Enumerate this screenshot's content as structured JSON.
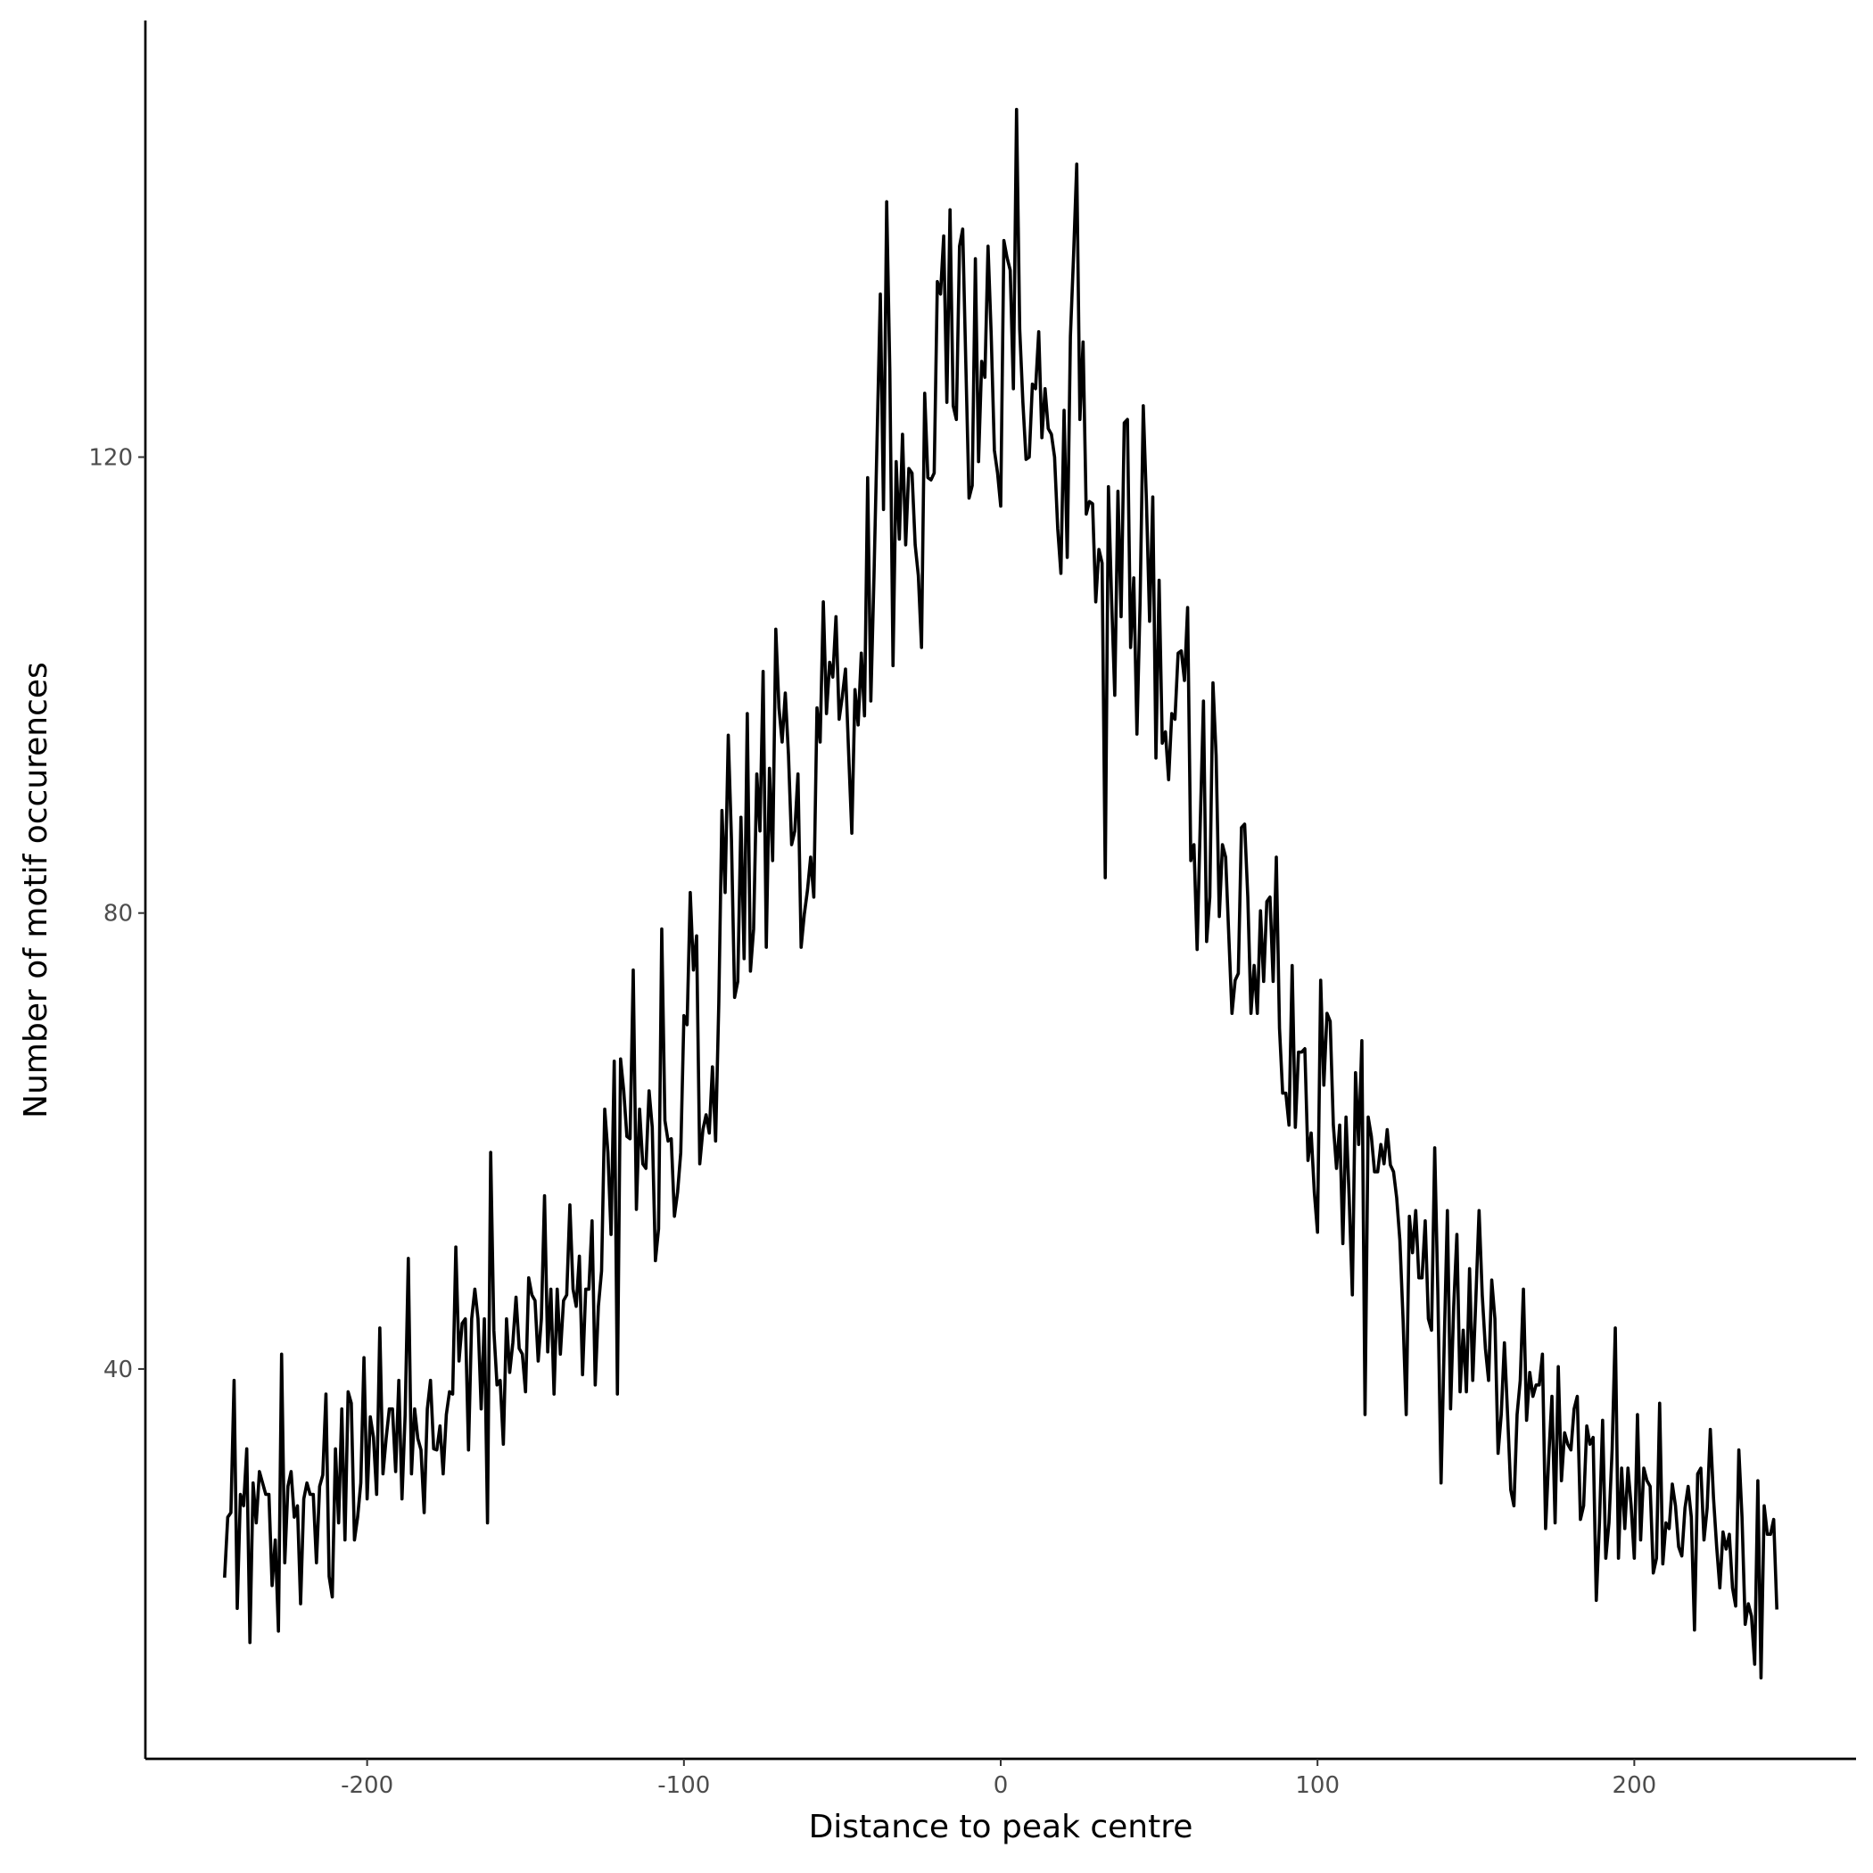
{
  "chart_data": {
    "type": "line",
    "x_label": "Distance to peak centre",
    "y_label": "Number of motif occurences",
    "xlim": [
      -270,
      270
    ],
    "xticks": [
      -200,
      -100,
      0,
      100,
      200
    ],
    "ylim": [
      5.8,
      158.3
    ],
    "yticks": [
      40,
      80,
      120
    ],
    "grid": false,
    "color": "#000000",
    "x": [
      -245,
      -244,
      -243,
      -242,
      -241,
      -240,
      -239,
      -238,
      -237,
      -236,
      -235,
      -234,
      -233,
      -232,
      -231,
      -230,
      -229,
      -228,
      -227,
      -226,
      -225,
      -224,
      -223,
      -222,
      -221,
      -220,
      -219,
      -218,
      -217,
      -216,
      -215,
      -214,
      -213,
      -212,
      -211,
      -210,
      -209,
      -208,
      -207,
      -206,
      -205,
      -204,
      -203,
      -202,
      -201,
      -200,
      -199,
      -198,
      -197,
      -196,
      -195,
      -194,
      -193,
      -192,
      -191,
      -190,
      -189,
      -188,
      -187,
      -186,
      -185,
      -184,
      -183,
      -182,
      -181,
      -180,
      -179,
      -178,
      -177,
      -176,
      -175,
      -174,
      -173,
      -172,
      -171,
      -170,
      -169,
      -168,
      -167,
      -166,
      -165,
      -164,
      -163,
      -162,
      -161,
      -160,
      -159,
      -158,
      -157,
      -156,
      -155,
      -154,
      -153,
      -152,
      -151,
      -150,
      -149,
      -148,
      -147,
      -146,
      -145,
      -144,
      -143,
      -142,
      -141,
      -140,
      -139,
      -138,
      -137,
      -136,
      -135,
      -134,
      -133,
      -132,
      -131,
      -130,
      -129,
      -128,
      -127,
      -126,
      -125,
      -124,
      -123,
      -122,
      -121,
      -120,
      -119,
      -118,
      -117,
      -116,
      -115,
      -114,
      -113,
      -112,
      -111,
      -110,
      -109,
      -108,
      -107,
      -106,
      -105,
      -104,
      -103,
      -102,
      -101,
      -100,
      -99,
      -98,
      -97,
      -96,
      -95,
      -94,
      -93,
      -92,
      -91,
      -90,
      -89,
      -88,
      -87,
      -86,
      -85,
      -84,
      -83,
      -82,
      -81,
      -80,
      -79,
      -78,
      -77,
      -76,
      -75,
      -74,
      -73,
      -72,
      -71,
      -70,
      -69,
      -68,
      -67,
      -66,
      -65,
      -64,
      -63,
      -62,
      -61,
      -60,
      -59,
      -58,
      -57,
      -56,
      -55,
      -54,
      -53,
      -52,
      -51,
      -50,
      -49,
      -48,
      -47,
      -46,
      -45,
      -44,
      -43,
      -42,
      -41,
      -40,
      -39,
      -38,
      -37,
      -36,
      -35,
      -34,
      -33,
      -32,
      -31,
      -30,
      -29,
      -28,
      -27,
      -26,
      -25,
      -24,
      -23,
      -22,
      -21,
      -20,
      -19,
      -18,
      -17,
      -16,
      -15,
      -14,
      -13,
      -12,
      -11,
      -10,
      -9,
      -8,
      -7,
      -6,
      -5,
      -4,
      -3,
      -2,
      -1,
      0,
      1,
      2,
      3,
      4,
      5,
      6,
      7,
      8,
      9,
      10,
      11,
      12,
      13,
      14,
      15,
      16,
      17,
      18,
      19,
      20,
      21,
      22,
      23,
      24,
      25,
      26,
      27,
      28,
      29,
      30,
      31,
      32,
      33,
      34,
      35,
      36,
      37,
      38,
      39,
      40,
      41,
      42,
      43,
      44,
      45,
      46,
      47,
      48,
      49,
      50,
      51,
      52,
      53,
      54,
      55,
      56,
      57,
      58,
      59,
      60,
      61,
      62,
      63,
      64,
      65,
      66,
      67,
      68,
      69,
      70,
      71,
      72,
      73,
      74,
      75,
      76,
      77,
      78,
      79,
      80,
      81,
      82,
      83,
      84,
      85,
      86,
      87,
      88,
      89,
      90,
      91,
      92,
      93,
      94,
      95,
      96,
      97,
      98,
      99,
      100,
      101,
      102,
      103,
      104,
      105,
      106,
      107,
      108,
      109,
      110,
      111,
      112,
      113,
      114,
      115,
      116,
      117,
      118,
      119,
      120,
      121,
      122,
      123,
      124,
      125,
      126,
      127,
      128,
      129,
      130,
      131,
      132,
      133,
      134,
      135,
      136,
      137,
      138,
      139,
      140,
      141,
      142,
      143,
      144,
      145,
      146,
      147,
      148,
      149,
      150,
      151,
      152,
      153,
      154,
      155,
      156,
      157,
      158,
      159,
      160,
      161,
      162,
      163,
      164,
      165,
      166,
      167,
      168,
      169,
      170,
      171,
      172,
      173,
      174,
      175,
      176,
      177,
      178,
      179,
      180,
      181,
      182,
      183,
      184,
      185,
      186,
      187,
      188,
      189,
      190,
      191,
      192,
      193,
      194,
      195,
      196,
      197,
      198,
      199,
      200,
      201,
      202,
      203,
      204,
      205,
      206,
      207,
      208,
      209,
      210,
      211,
      212,
      213,
      214,
      215,
      216,
      217,
      218,
      219,
      220,
      221,
      222,
      223,
      224,
      225,
      226,
      227,
      228,
      229,
      230,
      231,
      232,
      233,
      234,
      235,
      236,
      237,
      238,
      239,
      240,
      241,
      242,
      243,
      244,
      245
    ],
    "values": [
      21.7,
      27,
      27.4,
      39,
      19,
      29,
      28,
      33,
      16,
      30,
      26.5,
      31,
      30,
      29,
      29,
      21,
      25,
      17,
      41.3,
      23,
      29.7,
      31,
      27,
      28,
      19.4,
      28.6,
      30,
      29,
      29,
      23,
      29.7,
      30.7,
      37.8,
      21.8,
      20,
      33,
      26.5,
      36.5,
      25,
      38,
      37,
      25,
      27,
      30,
      41,
      28.6,
      35.8,
      34,
      29,
      43.6,
      30.8,
      33.9,
      36.5,
      36.5,
      31,
      39,
      28.6,
      36,
      49.7,
      30.8,
      36.5,
      33.9,
      32.9,
      27.4,
      36.5,
      39,
      33,
      32.9,
      35,
      30.8,
      36,
      38,
      37.8,
      50.7,
      40.7,
      44,
      44.4,
      32.9,
      44.4,
      47,
      44.4,
      36.5,
      44.4,
      26.5,
      59,
      43.4,
      38.6,
      39,
      33.4,
      44.4,
      39.7,
      42.3,
      46.3,
      41.8,
      41.3,
      38,
      48,
      46.5,
      46,
      40.7,
      44.4,
      55.2,
      41.5,
      47,
      37.8,
      47,
      41.3,
      46,
      46.5,
      54.4,
      47,
      45.5,
      49.9,
      39.5,
      47,
      47,
      53,
      38.6,
      45.5,
      48.6,
      62.8,
      59,
      51.8,
      67,
      37.8,
      67.2,
      64.4,
      60.4,
      60.2,
      75,
      54,
      62.8,
      58,
      57.6,
      64.4,
      61.2,
      49.5,
      52.3,
      78.6,
      61.8,
      60,
      60.2,
      53.4,
      55.5,
      59,
      71,
      70.2,
      81.8,
      75,
      78,
      58,
      61,
      62.3,
      60.7,
      66.5,
      60,
      72,
      89,
      81.8,
      95.6,
      86.5,
      72.6,
      74,
      88.4,
      76,
      97.5,
      74.9,
      78.6,
      92.2,
      87.2,
      101.2,
      77,
      92.7,
      84.6,
      104.9,
      98,
      95,
      99.3,
      93.9,
      86,
      87.2,
      92.2,
      77,
      79.9,
      82,
      84.9,
      81.4,
      98,
      95,
      107.3,
      97.5,
      102,
      100.7,
      106,
      97,
      99,
      101.4,
      94,
      87,
      99.6,
      96.5,
      102.8,
      97.3,
      118.2,
      98.6,
      109.6,
      122,
      134.3,
      115.4,
      142.4,
      127.5,
      101.7,
      119.6,
      112.8,
      122,
      112.3,
      119,
      118.6,
      112.3,
      109.6,
      103.3,
      125.6,
      118.2,
      118,
      118.6,
      135.4,
      134.3,
      139.4,
      124.8,
      141.7,
      124.5,
      123.3,
      138.5,
      140,
      128,
      116.4,
      117.5,
      137.4,
      119.6,
      128.4,
      127,
      138.5,
      130.7,
      120.6,
      118.6,
      115.7,
      139,
      137.5,
      136.4,
      126,
      150.5,
      131.2,
      124.8,
      119.8,
      120,
      126.4,
      126,
      131,
      121.7,
      126,
      122.5,
      122,
      120,
      113.7,
      109.8,
      124.1,
      111.2,
      130.6,
      137.7,
      145.7,
      123.3,
      130.1,
      115,
      116.1,
      115.9,
      107.3,
      111.9,
      110.7,
      83.1,
      117.4,
      107.5,
      99.1,
      117,
      106,
      123,
      123.3,
      103.3,
      109.4,
      95.7,
      107.3,
      124.5,
      116.1,
      105.6,
      116.5,
      93.6,
      109.2,
      94.9,
      95.9,
      91.7,
      97.5,
      97,
      102.8,
      103,
      100.4,
      106.8,
      84.6,
      86,
      76.8,
      88,
      98.6,
      77.5,
      81.4,
      100.2,
      93.8,
      79.7,
      86,
      84.9,
      78,
      71.2,
      74.1,
      74.7,
      87.5,
      87.8,
      81.4,
      71.2,
      75.4,
      71.2,
      80.2,
      74,
      81,
      81.4,
      74,
      84.9,
      69.9,
      64.2,
      64.2,
      61.4,
      75.4,
      61.2,
      67.8,
      67.8,
      68.1,
      58.3,
      60.7,
      55.5,
      52,
      74.1,
      64.9,
      71.2,
      70.5,
      61.4,
      57.6,
      61.4,
      51,
      62.1,
      55,
      46.5,
      66,
      59.7,
      68.8,
      36,
      62.1,
      60.4,
      57.3,
      57.3,
      59.7,
      58,
      61,
      57.9,
      57.3,
      55,
      51.3,
      44.4,
      36,
      53.4,
      50.2,
      53.9,
      48,
      48,
      53,
      44.4,
      43.4,
      59.4,
      46.5,
      30,
      42.3,
      53.9,
      36.5,
      45.5,
      51.8,
      38,
      43.4,
      38,
      48.8,
      39,
      46.3,
      53.9,
      46.5,
      41.8,
      39,
      47.8,
      44.4,
      32.6,
      36,
      42.3,
      36,
      29.4,
      28,
      36,
      39,
      47,
      35.5,
      39.7,
      37.6,
      38.6,
      38.6,
      41.3,
      26,
      32.3,
      37.6,
      26.5,
      40.2,
      30.2,
      34.4,
      33.4,
      32.9,
      36.5,
      37.6,
      26.8,
      28,
      35,
      33.4,
      34,
      19.7,
      26.5,
      35.5,
      23.4,
      26.5,
      32.9,
      43.6,
      23.4,
      31.3,
      26,
      31.3,
      28,
      23.4,
      36,
      25,
      31.3,
      30.2,
      29.7,
      22.1,
      23.4,
      37,
      22.9,
      26.5,
      26,
      29.9,
      28,
      24.4,
      23.6,
      27.8,
      29.7,
      27,
      17.1,
      30.8,
      31.3,
      25,
      27.8,
      34.7,
      28.7,
      24.4,
      20.8,
      25.7,
      24.2,
      25.5,
      20.8,
      19.2,
      32.9,
      27,
      17.6,
      19.4,
      18.3,
      14.1,
      30.2,
      12.9,
      28,
      25.5,
      25.5,
      26.8,
      18.9
    ]
  }
}
